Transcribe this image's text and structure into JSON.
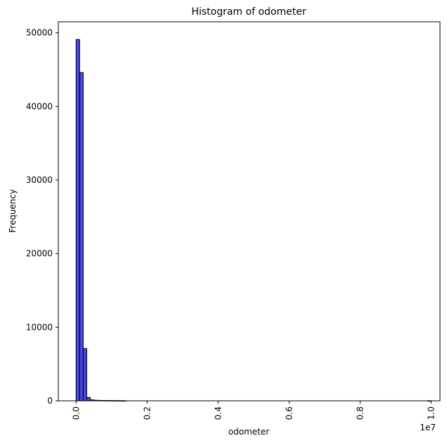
{
  "chart_data": {
    "type": "bar",
    "title": "Histogram of odometer",
    "xlabel": "odometer",
    "ylabel": "Frequency",
    "x_offset_label": "1e7",
    "xlim": [
      -0.05,
      1.025
    ],
    "ylim": [
      0,
      51500
    ],
    "x_ticks": [
      0.0,
      0.2,
      0.4,
      0.6,
      0.8,
      1.0
    ],
    "x_tick_labels": [
      "0.0",
      "0.2",
      "0.4",
      "0.6",
      "0.8",
      "1.0"
    ],
    "y_ticks": [
      0,
      10000,
      20000,
      30000,
      40000,
      50000
    ],
    "y_tick_labels": [
      "0",
      "10000",
      "20000",
      "30000",
      "40000",
      "50000"
    ],
    "bin_width": 0.01,
    "bin_starts": [
      0.0,
      0.01,
      0.02,
      0.03,
      0.04,
      0.05,
      0.06,
      0.07,
      0.08,
      0.09,
      0.1,
      0.11,
      0.12,
      0.13,
      0.99
    ],
    "values": [
      49100,
      44600,
      7100,
      450,
      130,
      80,
      60,
      50,
      40,
      40,
      30,
      30,
      20,
      20,
      10
    ],
    "bar_color": "#0000dd",
    "bar_alpha": 0.72,
    "edge_color": "#000000",
    "grid": false,
    "legend": "none"
  }
}
